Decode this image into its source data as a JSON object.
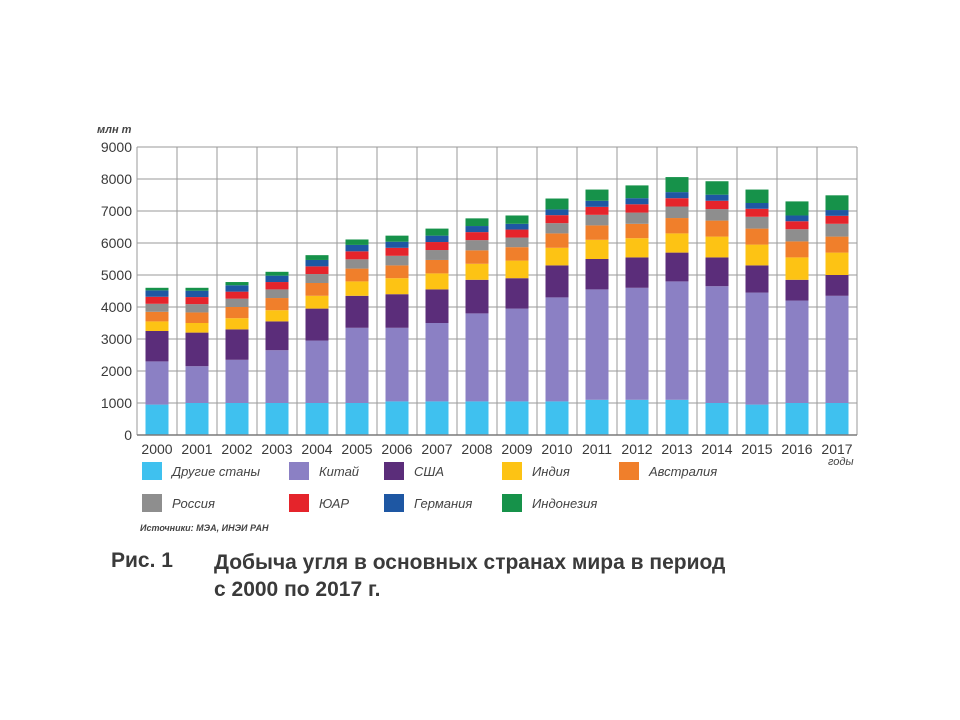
{
  "chart_data": {
    "type": "bar",
    "stacked": true,
    "y_unit": "млн т",
    "x_unit": "годы",
    "ylim": [
      0,
      9000
    ],
    "yticks": [
      0,
      1000,
      2000,
      3000,
      4000,
      5000,
      6000,
      7000,
      8000,
      9000
    ],
    "grid": true,
    "categories": [
      "2000",
      "2001",
      "2002",
      "2003",
      "2004",
      "2005",
      "2006",
      "2007",
      "2008",
      "2009",
      "2010",
      "2011",
      "2012",
      "2013",
      "2014",
      "2015",
      "2016",
      "2017"
    ],
    "series": [
      {
        "name": "Другие станы",
        "color": "#3fc1ef",
        "values": [
          950,
          1000,
          1000,
          1000,
          1000,
          1000,
          1050,
          1050,
          1050,
          1050,
          1050,
          1100,
          1100,
          1100,
          1000,
          950,
          1000,
          1000
        ]
      },
      {
        "name": "Китай",
        "color": "#8b80c4",
        "values": [
          1350,
          1150,
          1350,
          1650,
          1950,
          2350,
          2300,
          2450,
          2750,
          2900,
          3250,
          3450,
          3500,
          3700,
          3650,
          3500,
          3200,
          3350
        ]
      },
      {
        "name": "США",
        "color": "#5b2d7a",
        "values": [
          950,
          1050,
          950,
          900,
          1000,
          1000,
          1050,
          1050,
          1050,
          950,
          1000,
          950,
          950,
          900,
          900,
          850,
          650,
          650
        ]
      },
      {
        "name": "Индия",
        "color": "#fdc314",
        "values": [
          300,
          300,
          350,
          350,
          400,
          450,
          500,
          500,
          500,
          550,
          550,
          600,
          600,
          600,
          650,
          650,
          700,
          700
        ]
      },
      {
        "name": "Австралия",
        "color": "#f07f2b",
        "values": [
          300,
          330,
          350,
          380,
          400,
          400,
          400,
          420,
          420,
          420,
          450,
          450,
          450,
          480,
          500,
          500,
          500,
          500
        ]
      },
      {
        "name": "Россия",
        "color": "#8e8e8e",
        "values": [
          250,
          260,
          260,
          270,
          280,
          290,
          300,
          310,
          320,
          300,
          320,
          330,
          350,
          360,
          360,
          370,
          380,
          400
        ]
      },
      {
        "name": "ЮАР",
        "color": "#e5242b",
        "values": [
          220,
          220,
          220,
          230,
          240,
          250,
          250,
          250,
          250,
          250,
          250,
          250,
          260,
          260,
          260,
          250,
          250,
          250
        ]
      },
      {
        "name": "Германия",
        "color": "#1e57a3",
        "values": [
          200,
          200,
          200,
          200,
          200,
          200,
          190,
          200,
          190,
          180,
          180,
          190,
          190,
          190,
          190,
          180,
          180,
          180
        ]
      },
      {
        "name": "Индонезия",
        "color": "#16924a",
        "values": [
          80,
          90,
          100,
          120,
          150,
          170,
          190,
          220,
          240,
          260,
          340,
          350,
          400,
          470,
          420,
          420,
          440,
          460
        ]
      }
    ]
  },
  "legend_rows": [
    [
      "Другие станы",
      "Китай",
      "США",
      "Индия",
      "Австралия"
    ],
    [
      "Россия",
      "ЮАР",
      "Германия",
      "Индонезия"
    ]
  ],
  "source": "Источники: МЭА, ИНЭИ РАН",
  "caption": {
    "label": "Рис. 1",
    "text_line1": "Добыча угля в основных странах мира в период",
    "text_line2": "с 2000 по 2017 г."
  },
  "colors": {
    "grid": "#9a9a9a",
    "axis_text": "#3a3a3a",
    "frame": "#7a7a7a"
  }
}
